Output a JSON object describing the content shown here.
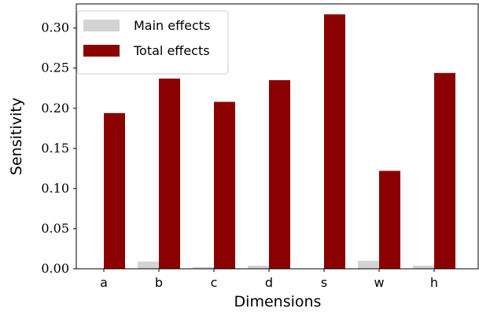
{
  "chart_data": {
    "type": "bar",
    "categories": [
      "a",
      "b",
      "c",
      "d",
      "s",
      "w",
      "h"
    ],
    "series": [
      {
        "name": "Main effects",
        "values": [
          0.0005,
          0.009,
          0.002,
          0.004,
          0.0005,
          0.01,
          0.004
        ],
        "color": "#d3d3d3"
      },
      {
        "name": "Total effects",
        "values": [
          0.194,
          0.237,
          0.208,
          0.235,
          0.317,
          0.122,
          0.244
        ],
        "color": "#8b0000"
      }
    ],
    "xlabel": "Dimensions",
    "ylabel": "Sensitivity",
    "ylim": [
      0,
      0.33
    ],
    "yticks": [
      0.0,
      0.05,
      0.1,
      0.15,
      0.2,
      0.25,
      0.3
    ],
    "ytick_labels": [
      "0.00",
      "0.05",
      "0.10",
      "0.15",
      "0.20",
      "0.25",
      "0.30"
    ],
    "legend_position": "top-left",
    "grid": false
  }
}
